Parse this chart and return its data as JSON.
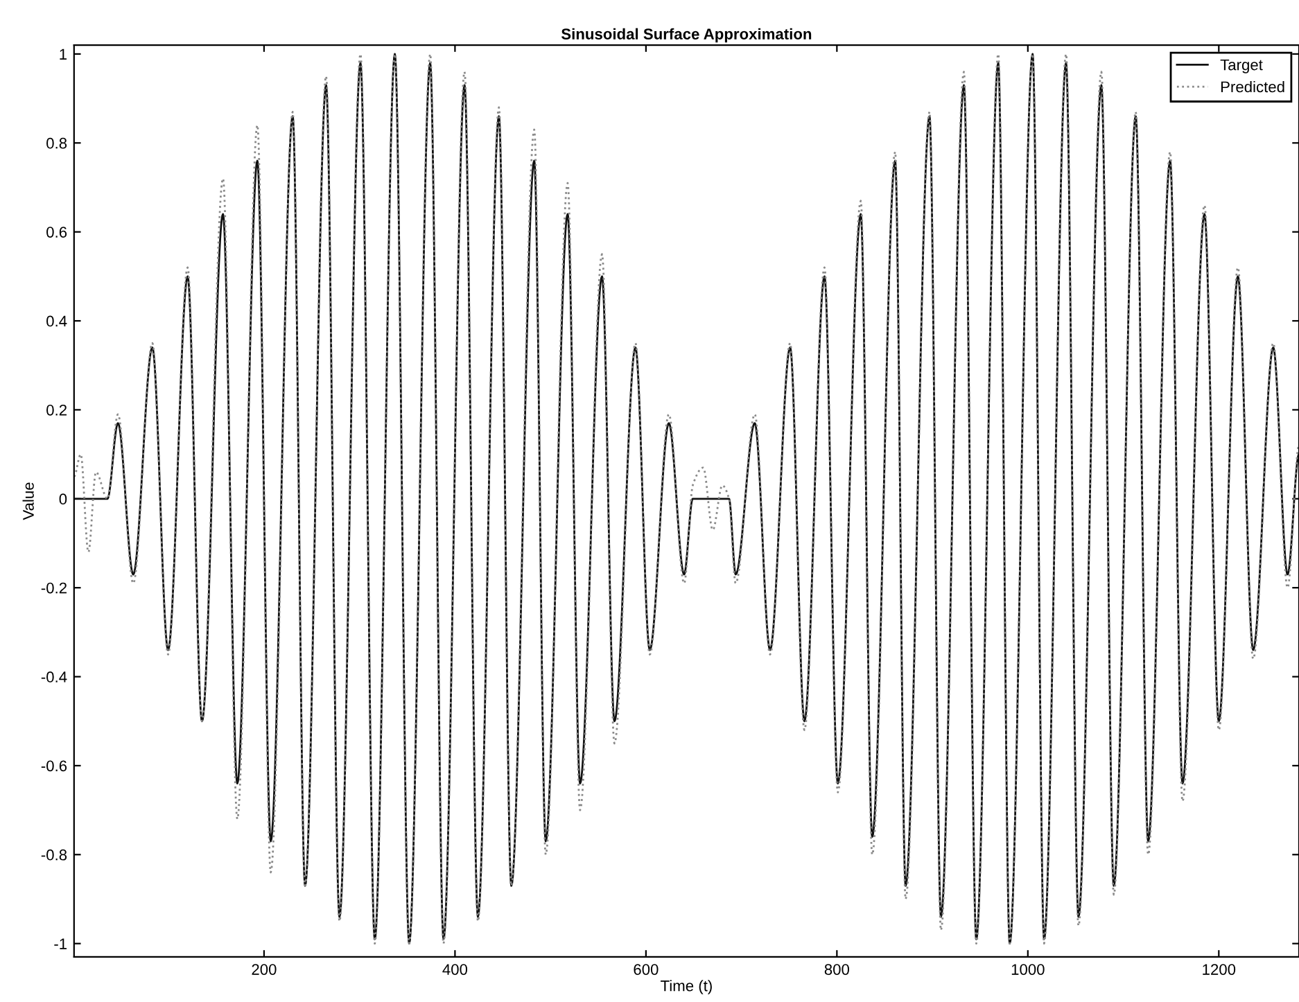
{
  "chart_data": {
    "type": "line",
    "title": "Sinusoidal Surface Approximation",
    "xlabel": "Time (t)",
    "ylabel": "Value",
    "xlim": [
      1,
      1284
    ],
    "ylim": [
      -1.03,
      1.02
    ],
    "xticks": [
      200,
      400,
      600,
      800,
      1000,
      1200
    ],
    "yticks": [
      -1,
      -0.8,
      -0.6,
      -0.4,
      -0.2,
      0,
      0.2,
      0.4,
      0.6,
      0.8,
      1
    ],
    "grid": false,
    "legend": "top right",
    "marker": "none",
    "series": [
      {
        "name": "Target",
        "color": "#111111",
        "line_style": "solid",
        "x": [
          1,
          36,
          47,
          63,
          83,
          99.5,
          120,
          135,
          157,
          172,
          193,
          207,
          230,
          243,
          265,
          279,
          301,
          316,
          337,
          352,
          374,
          388,
          410,
          424,
          446,
          459,
          483,
          495,
          518,
          531,
          554,
          567,
          589,
          604,
          624,
          640,
          649,
          687,
          694,
          714,
          730,
          751,
          766,
          787,
          801,
          825,
          837,
          861,
          872,
          897,
          909,
          933,
          946,
          969,
          981,
          1005,
          1017,
          1040,
          1053,
          1077,
          1090,
          1113,
          1126,
          1149,
          1162,
          1185,
          1200,
          1220,
          1236,
          1257,
          1272,
          1284
        ],
        "values": [
          0,
          0,
          0.17,
          -0.17,
          0.34,
          -0.34,
          0.5,
          -0.5,
          0.64,
          -0.64,
          0.76,
          -0.77,
          0.86,
          -0.87,
          0.93,
          -0.94,
          0.98,
          -0.99,
          1.0,
          -1.0,
          0.98,
          -0.99,
          0.93,
          -0.94,
          0.86,
          -0.87,
          0.76,
          -0.77,
          0.64,
          -0.64,
          0.5,
          -0.5,
          0.34,
          -0.34,
          0.17,
          -0.17,
          0,
          0,
          -0.17,
          0.17,
          -0.34,
          0.34,
          -0.5,
          0.5,
          -0.64,
          0.64,
          -0.76,
          0.76,
          -0.87,
          0.86,
          -0.94,
          0.93,
          -0.99,
          0.98,
          -1.0,
          1.0,
          -0.99,
          0.98,
          -0.94,
          0.93,
          -0.87,
          0.86,
          -0.77,
          0.76,
          -0.64,
          0.64,
          -0.5,
          0.5,
          -0.34,
          0.34,
          -0.17,
          0.1
        ]
      },
      {
        "name": "Predicted",
        "color": "#8a8a8a",
        "line_style": "dotted",
        "x": [
          1,
          8,
          16,
          24,
          36,
          47,
          63,
          83,
          99.5,
          120,
          135,
          157,
          172,
          193,
          207,
          230,
          243,
          265,
          279,
          301,
          316,
          337,
          352,
          374,
          388,
          410,
          424,
          446,
          459,
          483,
          495,
          518,
          531,
          554,
          567,
          589,
          604,
          624,
          640,
          649,
          660,
          670,
          680,
          687,
          694,
          714,
          730,
          751,
          766,
          787,
          801,
          825,
          837,
          861,
          872,
          897,
          909,
          933,
          946,
          969,
          981,
          1005,
          1017,
          1040,
          1053,
          1077,
          1090,
          1113,
          1126,
          1149,
          1162,
          1185,
          1200,
          1220,
          1236,
          1257,
          1272,
          1284
        ],
        "values": [
          0.05,
          0.1,
          -0.12,
          0.06,
          0,
          0.19,
          -0.19,
          0.35,
          -0.35,
          0.52,
          -0.5,
          0.72,
          -0.72,
          0.84,
          -0.84,
          0.87,
          -0.87,
          0.95,
          -0.95,
          1.0,
          -1.0,
          1.0,
          -1.0,
          1.0,
          -1.0,
          0.96,
          -0.95,
          0.88,
          -0.87,
          0.83,
          -0.8,
          0.71,
          -0.7,
          0.55,
          -0.55,
          0.35,
          -0.35,
          0.19,
          -0.19,
          0.03,
          0.07,
          -0.07,
          0.03,
          0,
          -0.19,
          0.19,
          -0.35,
          0.35,
          -0.52,
          0.52,
          -0.66,
          0.67,
          -0.8,
          0.78,
          -0.9,
          0.87,
          -0.97,
          0.96,
          -1.0,
          1.0,
          -1.0,
          1.0,
          -1.0,
          1.0,
          -0.96,
          0.96,
          -0.89,
          0.87,
          -0.8,
          0.78,
          -0.68,
          0.66,
          -0.52,
          0.52,
          -0.36,
          0.35,
          -0.2,
          0.12
        ]
      }
    ]
  }
}
